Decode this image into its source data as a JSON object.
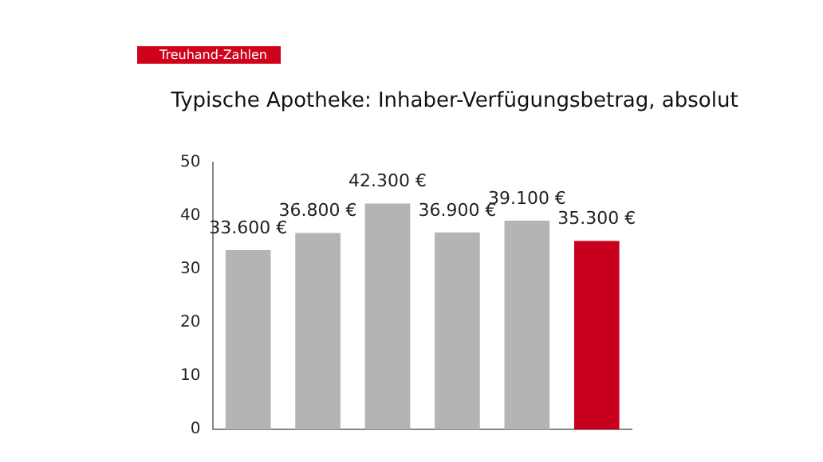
{
  "chart_data": {
    "type": "bar",
    "title": "Typische Apotheke: Inhaber-Verfügungsbetrag, absolut",
    "annotations": [
      "Treuhand-Zahlen"
    ],
    "categories": [
      null,
      null,
      null,
      null,
      null,
      null
    ],
    "values": [
      33.6,
      36.8,
      42.3,
      36.9,
      39.1,
      35.3
    ],
    "colors": [
      "#b4b4b4",
      "#b4b4b4",
      "#b4b4b4",
      "#b4b4b4",
      "#b4b4b4",
      "#c8001e"
    ],
    "value_labels": [
      "33.600 €",
      "36.800 €",
      "42.300 €",
      "36.900 €",
      "39.100 €",
      "35.300 €"
    ],
    "ylim": [
      0,
      50
    ],
    "yticks": [
      0,
      10,
      20,
      30,
      40,
      50
    ],
    "grid": false,
    "legend": false
  }
}
